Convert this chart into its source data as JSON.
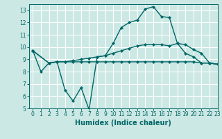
{
  "xlabel": "Humidex (Indice chaleur)",
  "bg_color": "#cce8e4",
  "grid_color": "#ffffff",
  "line_color": "#006666",
  "xlim": [
    -0.5,
    23
  ],
  "ylim": [
    5,
    13.5
  ],
  "xticks": [
    0,
    1,
    2,
    3,
    4,
    5,
    6,
    7,
    8,
    9,
    10,
    11,
    12,
    13,
    14,
    15,
    16,
    17,
    18,
    19,
    20,
    21,
    22,
    23
  ],
  "yticks": [
    5,
    6,
    7,
    8,
    9,
    10,
    11,
    12,
    13
  ],
  "series": [
    {
      "x": [
        0,
        1,
        2,
        3,
        4,
        5,
        6,
        7,
        8,
        9,
        10,
        11,
        12,
        13,
        14,
        15,
        16,
        17,
        18,
        19,
        20,
        21,
        22,
        23
      ],
      "y": [
        9.7,
        8.0,
        8.7,
        8.8,
        6.5,
        5.6,
        6.7,
        4.9,
        9.2,
        9.3,
        10.3,
        11.6,
        12.0,
        12.2,
        13.1,
        13.3,
        12.5,
        12.4,
        10.3,
        9.5,
        9.2,
        8.7,
        8.7,
        8.6
      ]
    },
    {
      "x": [
        0,
        2,
        3,
        4,
        5,
        6,
        7,
        8,
        9,
        10,
        11,
        12,
        13,
        14,
        15,
        16,
        17,
        18,
        19,
        20,
        21,
        22,
        23
      ],
      "y": [
        9.7,
        8.7,
        8.8,
        8.8,
        8.9,
        9.0,
        9.1,
        9.2,
        9.3,
        9.5,
        9.7,
        9.9,
        10.1,
        10.2,
        10.2,
        10.2,
        10.1,
        10.3,
        10.2,
        9.8,
        9.5,
        8.7,
        8.6
      ]
    },
    {
      "x": [
        0,
        2,
        3,
        4,
        5,
        6,
        7,
        8,
        9,
        10,
        11,
        12,
        13,
        14,
        15,
        16,
        17,
        18,
        19,
        20,
        21,
        22,
        23
      ],
      "y": [
        9.7,
        8.7,
        8.8,
        8.8,
        8.8,
        8.8,
        8.8,
        8.8,
        8.8,
        8.8,
        8.8,
        8.8,
        8.8,
        8.8,
        8.8,
        8.8,
        8.8,
        8.8,
        8.8,
        8.8,
        8.7,
        8.7,
        8.6
      ]
    }
  ],
  "marker": "D",
  "markersize": 2,
  "linewidth": 1.0,
  "xlabel_fontsize": 7,
  "tick_fontsize": 5.5
}
